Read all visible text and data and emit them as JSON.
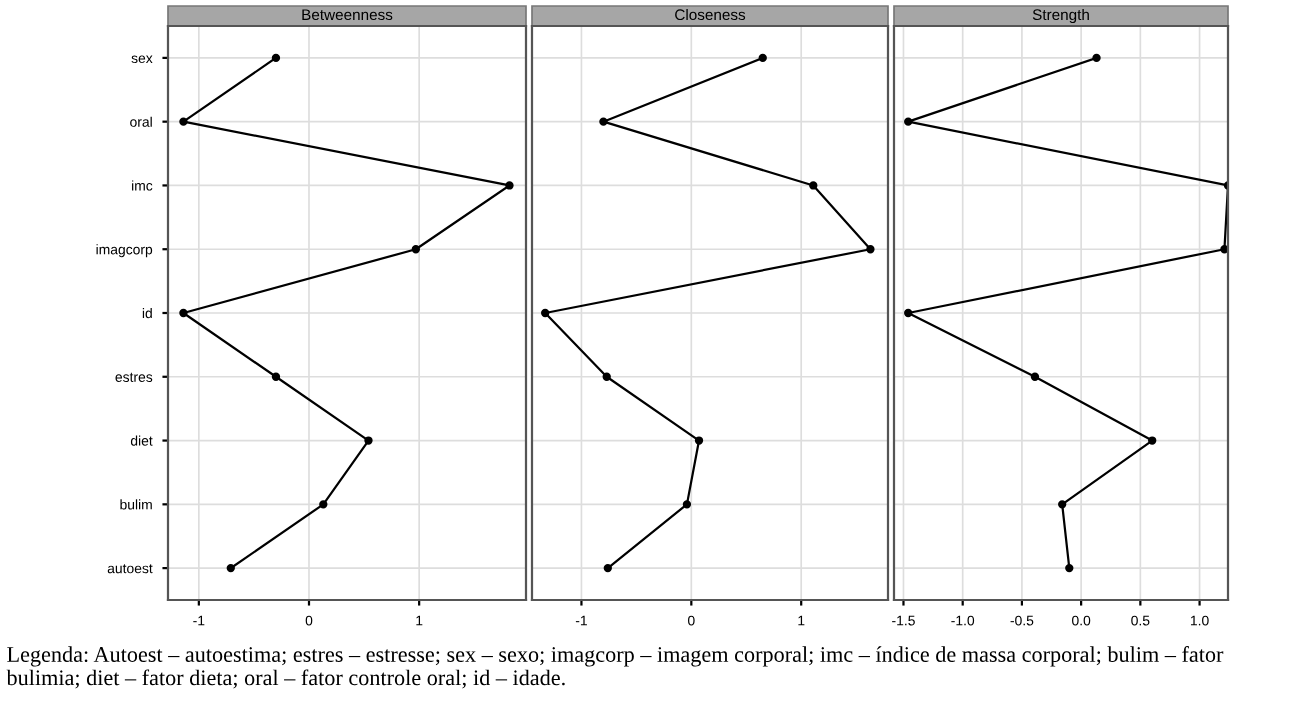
{
  "chart_data": [
    {
      "type": "line",
      "orientation": "horizontal",
      "title": "Betweenness",
      "categories": [
        "sex",
        "oral",
        "imc",
        "imagcorp",
        "id",
        "estres",
        "diet",
        "bulim",
        "autoest"
      ],
      "series": [
        {
          "color": "#000000",
          "values": [
            -0.3,
            -1.14,
            1.82,
            0.97,
            -1.14,
            -0.3,
            0.54,
            0.13,
            -0.71
          ]
        }
      ],
      "xlim": [
        -1.28,
        1.97
      ],
      "xticks": [
        -1,
        0,
        1
      ],
      "grid": true,
      "marker": "circle",
      "line_style": "solid",
      "annotations": [
        "Legenda: Autoest – autoestima; estres – estresse; sex – sexo; imagcorp – imagem corporal; imc – índice de massa corporal; bulim – fator bulimia; diet – fator dieta; oral – fator controle oral; id – idade."
      ]
    },
    {
      "type": "line",
      "orientation": "horizontal",
      "title": "Closeness",
      "categories": [
        null,
        null,
        null,
        null,
        null,
        null,
        null,
        null,
        null
      ],
      "series": [
        {
          "color": "#000000",
          "values": [
            0.65,
            -0.8,
            1.11,
            1.63,
            -1.33,
            -0.77,
            0.07,
            -0.04,
            -0.76
          ]
        }
      ],
      "xlim": [
        -1.45,
        1.79
      ],
      "xticks": [
        -1,
        0,
        1
      ],
      "grid": true,
      "marker": "circle",
      "line_style": "solid",
      "tick_labels": "x"
    },
    {
      "type": "line",
      "orientation": "horizontal",
      "title": "Strength",
      "categories": [
        null,
        null,
        null,
        null,
        null,
        null,
        null,
        null,
        null
      ],
      "series": [
        {
          "color": "#000000",
          "values": [
            0.13,
            -1.46,
            1.24,
            1.21,
            -1.46,
            -0.39,
            0.6,
            -0.16,
            -0.1
          ]
        }
      ],
      "xlim": [
        -1.58,
        1.24
      ],
      "xticks": [
        {
          "value": -1.5,
          "label": "-1.5"
        },
        {
          "value": -1.0,
          "label": "-1.0"
        },
        {
          "value": -0.5,
          "label": "-0.5"
        },
        {
          "value": 0.0,
          "label": "0.0"
        },
        {
          "value": 0.5,
          "label": "0.5"
        },
        {
          "value": 1.0,
          "label": "1.0"
        }
      ],
      "grid": true,
      "marker": "circle",
      "line_style": "solid",
      "tick_labels": "x"
    }
  ]
}
